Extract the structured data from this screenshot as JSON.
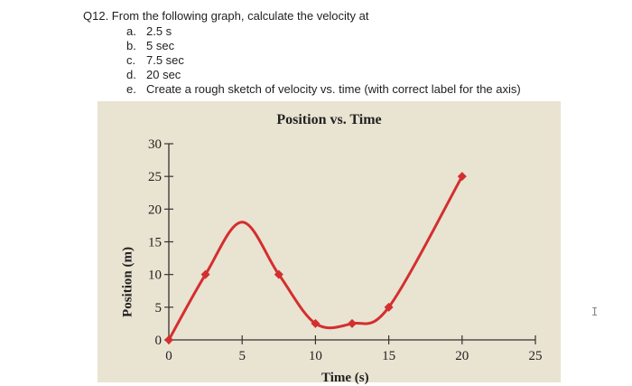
{
  "question": {
    "title": "Q12. From the following graph, calculate the velocity at",
    "options": [
      {
        "letter": "a.",
        "text": "2.5 s"
      },
      {
        "letter": "b.",
        "text": "5 sec"
      },
      {
        "letter": "c.",
        "text": "7.5 sec"
      },
      {
        "letter": "d.",
        "text": "20 sec"
      },
      {
        "letter": "e.",
        "text": "Create a rough sketch of velocity vs. time (with correct label for the axis)"
      }
    ]
  },
  "cursor_glyph": "I",
  "chart_data": {
    "type": "line",
    "title": "Position vs. Time",
    "xlabel": "Time (s)",
    "ylabel": "Position (m)",
    "xlim": [
      0,
      25
    ],
    "ylim": [
      0,
      30
    ],
    "x_ticks": [
      0,
      5,
      10,
      15,
      20,
      25
    ],
    "y_ticks": [
      0,
      5,
      10,
      15,
      20,
      25,
      30
    ],
    "markers": [
      {
        "x": 0,
        "y": 0
      },
      {
        "x": 2.5,
        "y": 10
      },
      {
        "x": 7.5,
        "y": 10
      },
      {
        "x": 10,
        "y": 2.5
      },
      {
        "x": 12.5,
        "y": 2.5
      },
      {
        "x": 15,
        "y": 5
      },
      {
        "x": 20,
        "y": 25
      }
    ],
    "curve": [
      [
        0,
        0
      ],
      [
        2.5,
        10
      ],
      [
        5,
        18
      ],
      [
        7.5,
        10
      ],
      [
        10,
        2.5
      ],
      [
        12.5,
        2.5
      ],
      [
        15,
        5
      ],
      [
        20,
        25
      ]
    ],
    "line_color": "#d32f2f",
    "marker_color": "#d32f2f",
    "grid": false
  }
}
